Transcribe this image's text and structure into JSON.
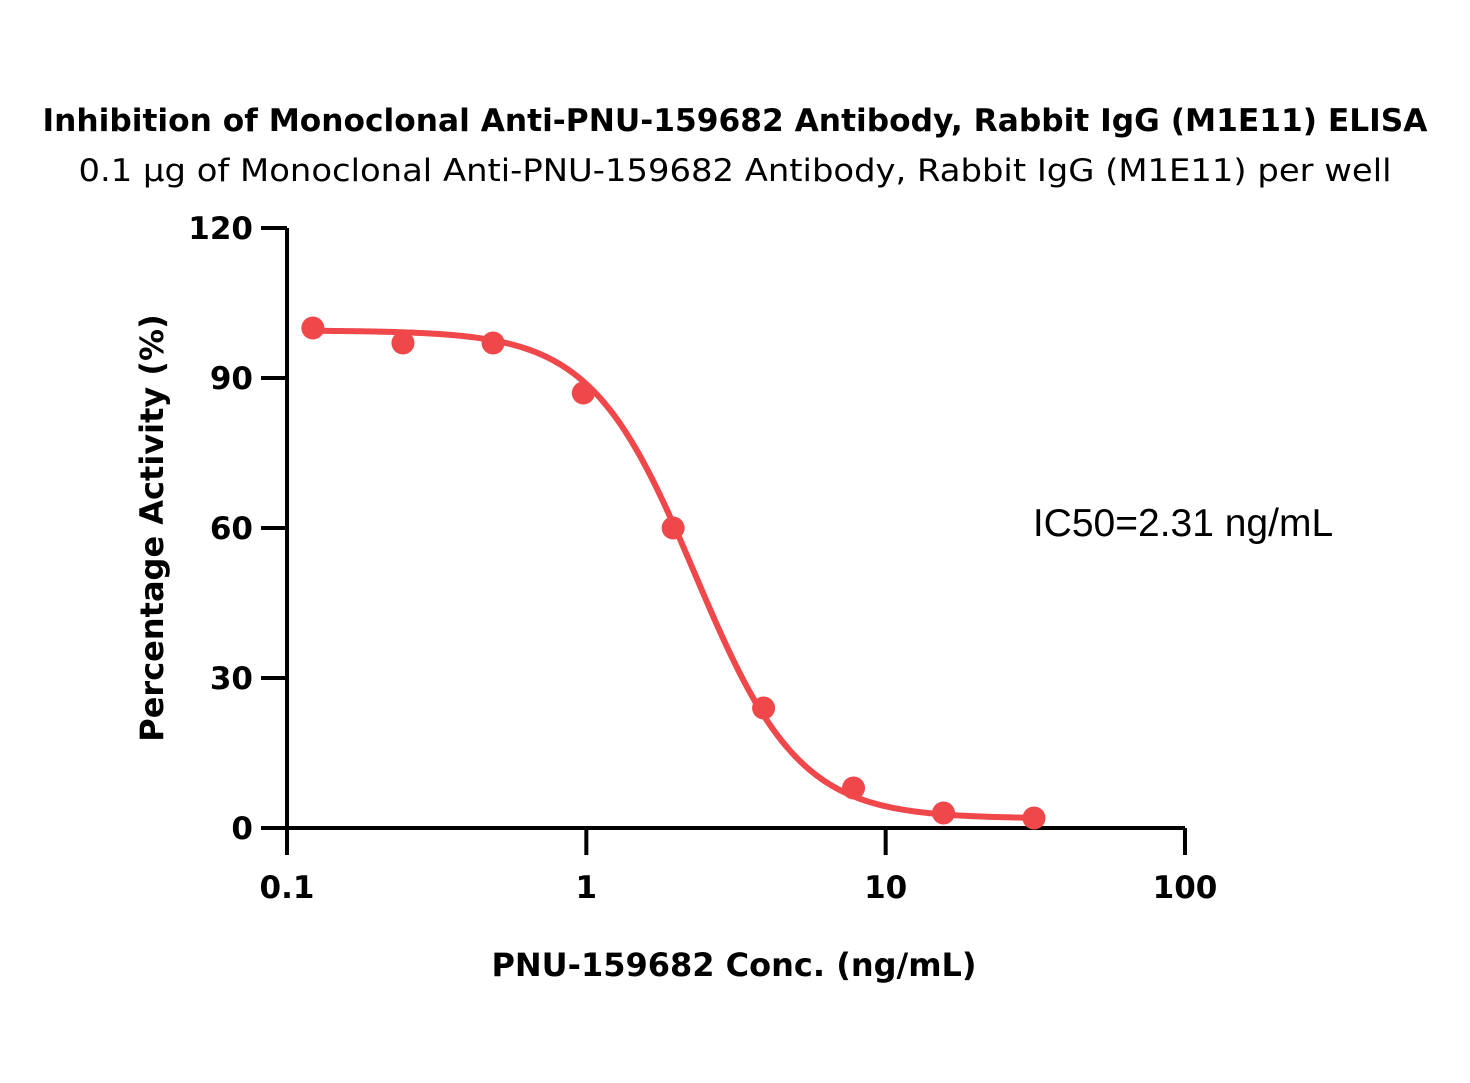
{
  "chart_data": {
    "type": "scatter",
    "title": "Inhibition of Monoclonal Anti-PNU-159682 Antibody, Rabbit IgG (M1E11) ELISA",
    "subtitle": "0.1 µg of Monoclonal Anti-PNU-159682 Antibody, Rabbit IgG (M1E11) per well",
    "xlabel": "PNU-159682 Conc. (ng/mL)",
    "ylabel": "Percentage Activity (%)",
    "x_scale": "log",
    "xlim": [
      0.1,
      100
    ],
    "ylim": [
      0,
      120
    ],
    "x_ticks": [
      {
        "value": 0.1,
        "label": "0.1"
      },
      {
        "value": 1,
        "label": "1"
      },
      {
        "value": 10,
        "label": "10"
      },
      {
        "value": 100,
        "label": "100"
      }
    ],
    "y_ticks": [
      {
        "value": 0,
        "label": "0"
      },
      {
        "value": 30,
        "label": "30"
      },
      {
        "value": 60,
        "label": "60"
      },
      {
        "value": 90,
        "label": "90"
      },
      {
        "value": 120,
        "label": "120"
      }
    ],
    "grid": false,
    "series": [
      {
        "color": "#F0474B",
        "points": [
          {
            "x": 0.122,
            "y": 100
          },
          {
            "x": 0.244,
            "y": 97
          },
          {
            "x": 0.488,
            "y": 97
          },
          {
            "x": 0.977,
            "y": 87
          },
          {
            "x": 1.95,
            "y": 60
          },
          {
            "x": 3.91,
            "y": 24
          },
          {
            "x": 7.81,
            "y": 8
          },
          {
            "x": 15.6,
            "y": 3
          },
          {
            "x": 31.3,
            "y": 2
          }
        ],
        "fit": {
          "model": "four-parameter logistic",
          "bottom": 1.9,
          "top": 99.5,
          "ic50": 2.31,
          "hill": 2.5,
          "x_range": [
            0.122,
            31.3
          ]
        }
      }
    ],
    "annotations": [
      {
        "text": "IC50=2.31 ng/mL"
      }
    ]
  }
}
